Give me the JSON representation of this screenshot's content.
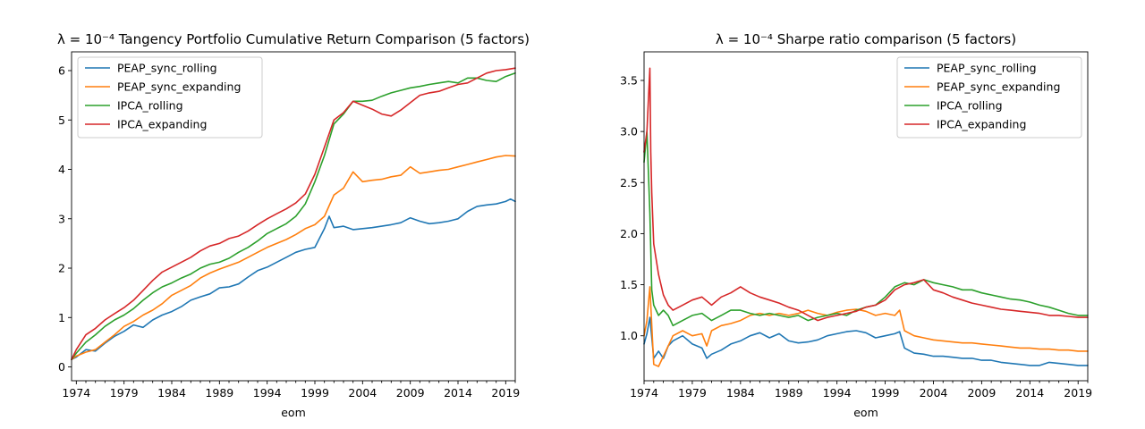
{
  "colors": {
    "PEAP_sync_rolling": "#1f77b4",
    "PEAP_sync_expanding": "#ff7f0e",
    "IPCA_rolling": "#2ca02c",
    "IPCA_expanding": "#d62728"
  },
  "chart_data": [
    {
      "type": "line",
      "title": "λ = 10⁻⁴  Tangency Portfolio Cumulative Return Comparison (5 factors)",
      "xlabel": "eom",
      "ylabel": "",
      "xlim": [
        1973.5,
        2020.0
      ],
      "ylim": [
        -0.28,
        6.38
      ],
      "xticks": [
        1974,
        1979,
        1984,
        1989,
        1994,
        1999,
        2004,
        2009,
        2014,
        2019
      ],
      "yticks": [
        0,
        1,
        2,
        3,
        4,
        5,
        6
      ],
      "grid": false,
      "legend_position": "top-left",
      "legend": [
        "PEAP_sync_rolling",
        "PEAP_sync_expanding",
        "IPCA_rolling",
        "IPCA_expanding"
      ],
      "series": [
        {
          "name": "PEAP_sync_rolling",
          "x": [
            1973.5,
            1974,
            1975,
            1976,
            1977,
            1978,
            1979,
            1980,
            1981,
            1982,
            1983,
            1984,
            1985,
            1986,
            1987,
            1988,
            1989,
            1990,
            1991,
            1992,
            1993,
            1994,
            1995,
            1996,
            1997,
            1998,
            1999,
            2000,
            2000.5,
            2001,
            2002,
            2003,
            2004,
            2005,
            2006,
            2007,
            2008,
            2009,
            2010,
            2011,
            2012,
            2013,
            2014,
            2015,
            2016,
            2017,
            2018,
            2019,
            2019.5,
            2020
          ],
          "values": [
            0.15,
            0.2,
            0.35,
            0.32,
            0.48,
            0.62,
            0.72,
            0.85,
            0.8,
            0.95,
            1.05,
            1.12,
            1.22,
            1.35,
            1.42,
            1.48,
            1.6,
            1.62,
            1.68,
            1.82,
            1.95,
            2.02,
            2.12,
            2.22,
            2.32,
            2.38,
            2.42,
            2.8,
            3.05,
            2.82,
            2.85,
            2.78,
            2.8,
            2.82,
            2.85,
            2.88,
            2.92,
            3.02,
            2.95,
            2.9,
            2.92,
            2.95,
            3.0,
            3.15,
            3.25,
            3.28,
            3.3,
            3.35,
            3.4,
            3.35
          ]
        },
        {
          "name": "PEAP_sync_expanding",
          "x": [
            1973.5,
            1974,
            1975,
            1976,
            1977,
            1978,
            1979,
            1980,
            1981,
            1982,
            1983,
            1984,
            1985,
            1986,
            1987,
            1988,
            1989,
            1990,
            1991,
            1992,
            1993,
            1994,
            1995,
            1996,
            1997,
            1998,
            1999,
            2000,
            2001,
            2002,
            2003,
            2004,
            2005,
            2006,
            2007,
            2008,
            2009,
            2010,
            2011,
            2012,
            2013,
            2014,
            2015,
            2016,
            2017,
            2018,
            2019,
            2020
          ],
          "values": [
            0.15,
            0.22,
            0.3,
            0.35,
            0.5,
            0.65,
            0.82,
            0.92,
            1.05,
            1.15,
            1.28,
            1.45,
            1.55,
            1.65,
            1.8,
            1.9,
            1.98,
            2.05,
            2.12,
            2.22,
            2.32,
            2.42,
            2.5,
            2.58,
            2.68,
            2.8,
            2.88,
            3.05,
            3.48,
            3.62,
            3.95,
            3.75,
            3.78,
            3.8,
            3.85,
            3.88,
            4.05,
            3.92,
            3.95,
            3.98,
            4.0,
            4.05,
            4.1,
            4.15,
            4.2,
            4.25,
            4.28,
            4.27
          ]
        },
        {
          "name": "IPCA_rolling",
          "x": [
            1973.5,
            1974,
            1975,
            1976,
            1977,
            1978,
            1979,
            1980,
            1981,
            1982,
            1983,
            1984,
            1985,
            1986,
            1987,
            1988,
            1989,
            1990,
            1991,
            1992,
            1993,
            1994,
            1995,
            1996,
            1997,
            1998,
            1999,
            2000,
            2001,
            2002,
            2003,
            2004,
            2005,
            2006,
            2007,
            2008,
            2009,
            2010,
            2011,
            2012,
            2013,
            2014,
            2015,
            2016,
            2017,
            2018,
            2019,
            2020
          ],
          "values": [
            0.15,
            0.28,
            0.5,
            0.65,
            0.82,
            0.95,
            1.05,
            1.18,
            1.35,
            1.5,
            1.62,
            1.7,
            1.8,
            1.88,
            2.0,
            2.08,
            2.12,
            2.2,
            2.32,
            2.42,
            2.55,
            2.7,
            2.8,
            2.9,
            3.05,
            3.3,
            3.75,
            4.28,
            4.92,
            5.12,
            5.38,
            5.38,
            5.4,
            5.48,
            5.55,
            5.6,
            5.65,
            5.68,
            5.72,
            5.75,
            5.78,
            5.75,
            5.85,
            5.85,
            5.8,
            5.78,
            5.88,
            5.95
          ]
        },
        {
          "name": "IPCA_expanding",
          "x": [
            1973.5,
            1974,
            1975,
            1976,
            1977,
            1978,
            1979,
            1980,
            1981,
            1982,
            1983,
            1984,
            1985,
            1986,
            1987,
            1988,
            1989,
            1990,
            1991,
            1992,
            1993,
            1994,
            1995,
            1996,
            1997,
            1998,
            1999,
            2000,
            2001,
            2002,
            2003,
            2004,
            2005,
            2006,
            2007,
            2008,
            2009,
            2010,
            2011,
            2012,
            2013,
            2014,
            2015,
            2016,
            2017,
            2018,
            2019,
            2020
          ],
          "values": [
            0.15,
            0.35,
            0.65,
            0.78,
            0.95,
            1.08,
            1.2,
            1.35,
            1.55,
            1.75,
            1.92,
            2.02,
            2.12,
            2.22,
            2.35,
            2.45,
            2.5,
            2.6,
            2.65,
            2.75,
            2.88,
            3.0,
            3.1,
            3.2,
            3.32,
            3.5,
            3.9,
            4.45,
            5.0,
            5.15,
            5.38,
            5.3,
            5.22,
            5.12,
            5.08,
            5.2,
            5.35,
            5.5,
            5.55,
            5.58,
            5.65,
            5.72,
            5.75,
            5.85,
            5.95,
            6.0,
            6.02,
            6.05
          ]
        }
      ]
    },
    {
      "type": "line",
      "title": "λ = 10⁻⁴  Sharpe ratio comparison (5 factors)",
      "xlabel": "eom",
      "ylabel": "",
      "xlim": [
        1974.0,
        2020.0
      ],
      "ylim": [
        0.56,
        3.78
      ],
      "xticks": [
        1974,
        1979,
        1984,
        1989,
        1994,
        1999,
        2004,
        2009,
        2014,
        2019
      ],
      "yticks": [
        1.0,
        1.5,
        2.0,
        2.5,
        3.0,
        3.5
      ],
      "ytick_labels": [
        "1.0",
        "1.5",
        "2.0",
        "2.5",
        "3.0",
        "3.5"
      ],
      "grid": false,
      "legend_position": "top-right",
      "legend": [
        "PEAP_sync_rolling",
        "PEAP_sync_expanding",
        "IPCA_rolling",
        "IPCA_expanding"
      ],
      "series": [
        {
          "name": "PEAP_sync_rolling",
          "x": [
            1974,
            1974.3,
            1974.6,
            1975,
            1975.5,
            1976,
            1976.5,
            1977,
            1978,
            1979,
            1980,
            1980.5,
            1981,
            1982,
            1983,
            1984,
            1985,
            1986,
            1987,
            1988,
            1989,
            1990,
            1991,
            1992,
            1993,
            1994,
            1995,
            1996,
            1997,
            1998,
            1999,
            2000,
            2000.5,
            2001,
            2002,
            2003,
            2004,
            2005,
            2006,
            2007,
            2008,
            2009,
            2010,
            2011,
            2012,
            2013,
            2014,
            2015,
            2016,
            2017,
            2018,
            2019,
            2020
          ],
          "values": [
            0.92,
            1.02,
            1.18,
            0.78,
            0.85,
            0.78,
            0.9,
            0.95,
            1.0,
            0.92,
            0.88,
            0.78,
            0.82,
            0.86,
            0.92,
            0.95,
            1.0,
            1.03,
            0.98,
            1.02,
            0.95,
            0.93,
            0.94,
            0.96,
            1.0,
            1.02,
            1.04,
            1.05,
            1.03,
            0.98,
            1.0,
            1.02,
            1.04,
            0.88,
            0.83,
            0.82,
            0.8,
            0.8,
            0.79,
            0.78,
            0.78,
            0.76,
            0.76,
            0.74,
            0.73,
            0.72,
            0.71,
            0.71,
            0.74,
            0.73,
            0.72,
            0.71,
            0.71
          ]
        },
        {
          "name": "PEAP_sync_expanding",
          "x": [
            1974,
            1974.3,
            1974.6,
            1975,
            1975.5,
            1976,
            1976.5,
            1977,
            1978,
            1979,
            1980,
            1980.5,
            1981,
            1982,
            1983,
            1984,
            1985,
            1986,
            1987,
            1988,
            1989,
            1990,
            1991,
            1992,
            1993,
            1994,
            1995,
            1996,
            1997,
            1998,
            1999,
            2000,
            2000.5,
            2001,
            2002,
            2003,
            2004,
            2005,
            2006,
            2007,
            2008,
            2009,
            2010,
            2011,
            2012,
            2013,
            2014,
            2015,
            2016,
            2017,
            2018,
            2019,
            2020
          ],
          "values": [
            1.0,
            1.15,
            1.48,
            0.72,
            0.7,
            0.8,
            0.9,
            1.0,
            1.05,
            1.0,
            1.02,
            0.9,
            1.05,
            1.1,
            1.12,
            1.15,
            1.2,
            1.22,
            1.2,
            1.22,
            1.2,
            1.22,
            1.25,
            1.22,
            1.2,
            1.23,
            1.25,
            1.26,
            1.24,
            1.2,
            1.22,
            1.2,
            1.25,
            1.05,
            1.0,
            0.98,
            0.96,
            0.95,
            0.94,
            0.93,
            0.93,
            0.92,
            0.91,
            0.9,
            0.89,
            0.88,
            0.88,
            0.87,
            0.87,
            0.86,
            0.86,
            0.85,
            0.85
          ]
        },
        {
          "name": "IPCA_rolling",
          "x": [
            1974,
            1974.3,
            1974.6,
            1974.8,
            1975,
            1975.5,
            1976,
            1976.5,
            1977,
            1978,
            1979,
            1980,
            1981,
            1982,
            1983,
            1984,
            1985,
            1986,
            1987,
            1988,
            1989,
            1990,
            1991,
            1992,
            1993,
            1994,
            1995,
            1996,
            1997,
            1998,
            1999,
            2000,
            2001,
            2002,
            2003,
            2004,
            2005,
            2006,
            2007,
            2008,
            2009,
            2010,
            2011,
            2012,
            2013,
            2014,
            2015,
            2016,
            2017,
            2018,
            2019,
            2020
          ],
          "values": [
            2.7,
            3.0,
            2.2,
            1.45,
            1.3,
            1.2,
            1.25,
            1.2,
            1.1,
            1.15,
            1.2,
            1.22,
            1.15,
            1.2,
            1.25,
            1.25,
            1.22,
            1.2,
            1.22,
            1.2,
            1.18,
            1.2,
            1.15,
            1.18,
            1.2,
            1.22,
            1.2,
            1.25,
            1.28,
            1.3,
            1.38,
            1.48,
            1.52,
            1.5,
            1.55,
            1.52,
            1.5,
            1.48,
            1.45,
            1.45,
            1.42,
            1.4,
            1.38,
            1.36,
            1.35,
            1.33,
            1.3,
            1.28,
            1.25,
            1.22,
            1.2,
            1.2
          ]
        },
        {
          "name": "IPCA_expanding",
          "x": [
            1974,
            1974.3,
            1974.6,
            1974.7,
            1974.8,
            1975,
            1975.5,
            1976,
            1976.5,
            1977,
            1978,
            1979,
            1980,
            1981,
            1982,
            1983,
            1984,
            1985,
            1986,
            1987,
            1988,
            1989,
            1990,
            1991,
            1992,
            1993,
            1994,
            1995,
            1996,
            1997,
            1998,
            1999,
            2000,
            2001,
            2002,
            2003,
            2004,
            2005,
            2006,
            2007,
            2008,
            2009,
            2010,
            2011,
            2012,
            2013,
            2014,
            2015,
            2016,
            2017,
            2018,
            2019,
            2020
          ],
          "values": [
            2.8,
            3.0,
            3.62,
            2.8,
            2.4,
            1.9,
            1.6,
            1.4,
            1.3,
            1.25,
            1.3,
            1.35,
            1.38,
            1.3,
            1.38,
            1.42,
            1.48,
            1.42,
            1.38,
            1.35,
            1.32,
            1.28,
            1.25,
            1.2,
            1.15,
            1.18,
            1.2,
            1.22,
            1.24,
            1.28,
            1.3,
            1.35,
            1.45,
            1.5,
            1.52,
            1.55,
            1.45,
            1.42,
            1.38,
            1.35,
            1.32,
            1.3,
            1.28,
            1.26,
            1.25,
            1.24,
            1.23,
            1.22,
            1.2,
            1.2,
            1.19,
            1.18,
            1.18
          ]
        }
      ]
    }
  ]
}
